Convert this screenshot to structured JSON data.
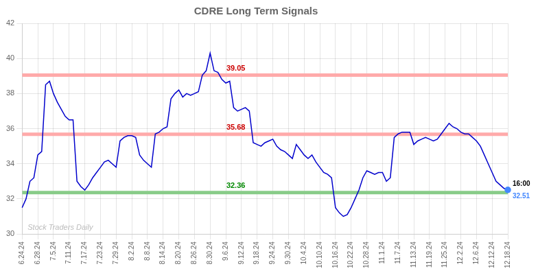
{
  "chart_data": {
    "type": "line",
    "title": "CDRE Long Term Signals",
    "categories": [
      "6.24.24",
      null,
      null,
      null,
      "6.28.24",
      null,
      null,
      null,
      "7.5.24",
      null,
      null,
      null,
      "7.11.24",
      null,
      null,
      null,
      "7.17.24",
      null,
      null,
      null,
      "7.23.24",
      null,
      null,
      null,
      "7.29.24",
      null,
      null,
      null,
      "8.2.24",
      null,
      null,
      null,
      "8.8.24",
      null,
      null,
      null,
      "8.14.24",
      null,
      null,
      null,
      "8.20.24",
      null,
      null,
      null,
      "8.26.24",
      null,
      null,
      null,
      "8.30.24",
      null,
      null,
      null,
      "9.6.24",
      null,
      null,
      null,
      "9.12.24",
      null,
      null,
      null,
      "9.18.24",
      null,
      null,
      null,
      "9.24.24",
      null,
      null,
      null,
      "9.30.24",
      null,
      null,
      null,
      "10.4.24",
      null,
      null,
      null,
      "10.10.24",
      null,
      null,
      null,
      "10.16.24",
      null,
      null,
      null,
      "10.22.24",
      null,
      null,
      null,
      "10.28.24",
      null,
      null,
      null,
      "11.1.24",
      null,
      null,
      null,
      "11.7.24",
      null,
      null,
      null,
      "11.13.24",
      null,
      null,
      null,
      "11.19.24",
      null,
      null,
      null,
      "11.25.24",
      null,
      null,
      null,
      "12.2.24",
      null,
      null,
      null,
      "12.6.24",
      null,
      null,
      null,
      "12.12.24",
      null,
      null,
      null,
      "12.18.24"
    ],
    "values": [
      31.5,
      32.0,
      33.0,
      33.2,
      34.5,
      34.7,
      38.5,
      38.7,
      38.0,
      37.5,
      37.1,
      36.7,
      36.5,
      36.5,
      33.0,
      32.7,
      32.5,
      32.8,
      33.2,
      33.5,
      33.8,
      34.1,
      34.2,
      34.0,
      33.8,
      35.3,
      35.5,
      35.6,
      35.6,
      35.5,
      34.5,
      34.2,
      34.0,
      33.8,
      35.7,
      35.8,
      36.0,
      36.1,
      37.7,
      38.0,
      38.2,
      37.8,
      38.0,
      37.9,
      38.0,
      38.1,
      39.05,
      39.3,
      40.3,
      39.3,
      39.2,
      38.8,
      38.6,
      38.7,
      37.2,
      37.0,
      37.1,
      37.2,
      37.0,
      35.2,
      35.1,
      35.0,
      35.2,
      35.3,
      35.4,
      35.0,
      34.8,
      34.7,
      34.5,
      34.3,
      35.1,
      34.8,
      34.5,
      34.3,
      34.5,
      34.1,
      33.8,
      33.5,
      33.4,
      33.2,
      31.5,
      31.2,
      31.0,
      31.1,
      31.5,
      32.0,
      32.5,
      33.2,
      33.6,
      33.5,
      33.4,
      33.5,
      33.5,
      33.0,
      33.2,
      35.5,
      35.7,
      35.8,
      35.8,
      35.8,
      35.1,
      35.3,
      35.4,
      35.5,
      35.4,
      35.3,
      35.4,
      35.7,
      36.0,
      36.3,
      36.1,
      36.0,
      35.8,
      35.7,
      35.7,
      35.5,
      35.3,
      35.0,
      34.5,
      34.0,
      33.5,
      33.0,
      32.8,
      32.6,
      32.51
    ],
    "color": "#0000cc",
    "hlines": [
      {
        "value": 39.05,
        "label": "39.05",
        "color": "#ffaaaa",
        "label_color": "#cc0000"
      },
      {
        "value": 35.68,
        "label": "35.68",
        "color": "#ffaaaa",
        "label_color": "#cc0000"
      },
      {
        "value": 32.36,
        "label": "32.36",
        "color": "#88cc88",
        "label_color": "#008800"
      }
    ],
    "end_marker_color": "#4488ff",
    "end_labels": [
      {
        "text": "16:00",
        "color": "#000000"
      },
      {
        "text": "32.51",
        "color": "#4488ff"
      }
    ],
    "watermark": {
      "text": "Stock Traders Daily",
      "color": "#bbbbbb"
    },
    "ylim": [
      30,
      42
    ],
    "yticks": [
      30,
      32,
      34,
      36,
      38,
      40,
      42
    ],
    "grid": true
  }
}
